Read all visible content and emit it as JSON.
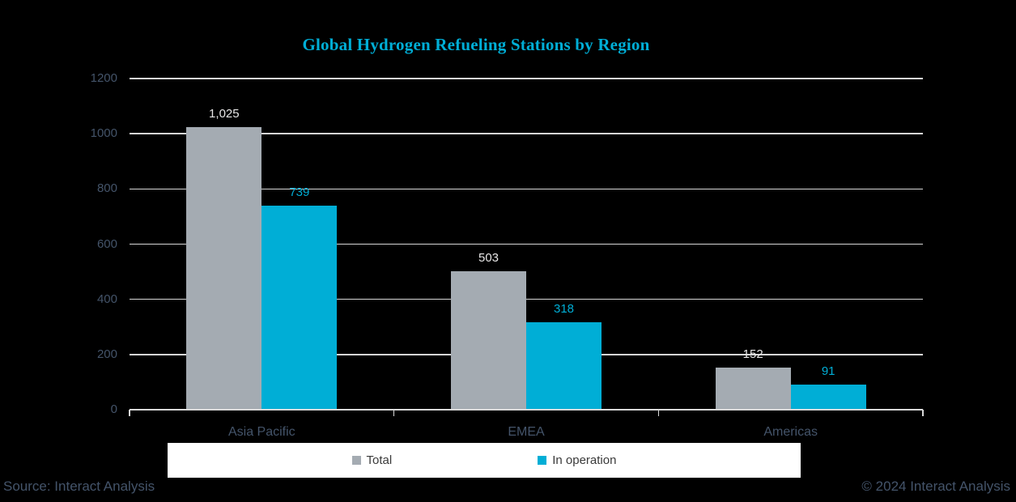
{
  "title": "Global Hydrogen Refueling Stations by Region",
  "footer": {
    "source": "Source: Interact Analysis",
    "copyright": "© 2024 Interact Analysis"
  },
  "legend": {
    "items": [
      {
        "label": "Total",
        "color": "#a4abb2"
      },
      {
        "label": "In operation",
        "color": "#00aed6"
      }
    ]
  },
  "colors": {
    "background": "#000000",
    "accent_cyan": "#00aed6",
    "series_gray": "#a4abb2",
    "axis_text": "#44546a",
    "gridline": "#e8e8e8",
    "axis_line": "#d9d9d9",
    "total_label": "#e7e6e6",
    "legend_background": "#ffffff",
    "legend_text": "#3a3a3a"
  },
  "chart_data": {
    "type": "bar",
    "title": "Global Hydrogen Refueling Stations by Region",
    "categories": [
      "Asia Pacific",
      "EMEA",
      "Americas"
    ],
    "series": [
      {
        "name": "Total",
        "color": "#a4abb2",
        "label_color": "#e7e6e6",
        "values": [
          1025,
          503,
          152
        ],
        "labels": [
          "1,025",
          "503",
          "152"
        ]
      },
      {
        "name": "In operation",
        "color": "#00aed6",
        "label_color": "#00aed6",
        "values": [
          739,
          318,
          91
        ],
        "labels": [
          "739",
          "318",
          "91"
        ]
      }
    ],
    "xlabel": "",
    "ylabel": "",
    "y_axis": {
      "min": 0,
      "max": 1200,
      "step": 200,
      "ticks": [
        0,
        200,
        400,
        600,
        800,
        1000,
        1200
      ],
      "tick_labels": [
        "0",
        "200",
        "400",
        "600",
        "800",
        "1000",
        "1200"
      ]
    },
    "grid": true,
    "legend_position": "bottom",
    "data_labels": true
  }
}
